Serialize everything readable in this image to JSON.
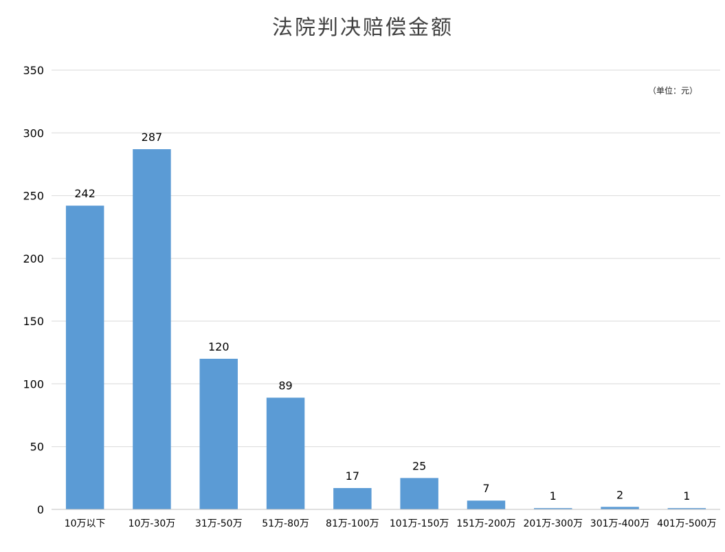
{
  "chart_data": {
    "type": "bar",
    "title": "法院判决赔偿金额",
    "unit_note": "（单位：元）",
    "categories": [
      "10万以下",
      "10万-30万",
      "31万-50万",
      "51万-80万",
      "81万-100万",
      "101万-150万",
      "151万-200万",
      "201万-300万",
      "301万-400万",
      "401万-500万"
    ],
    "values": [
      242,
      287,
      120,
      89,
      17,
      25,
      7,
      1,
      2,
      1
    ],
    "ylim": [
      0,
      350
    ],
    "yticks": [
      0,
      50,
      100,
      150,
      200,
      250,
      300,
      350
    ],
    "grid": true,
    "bar_color": "#5b9bd5"
  }
}
